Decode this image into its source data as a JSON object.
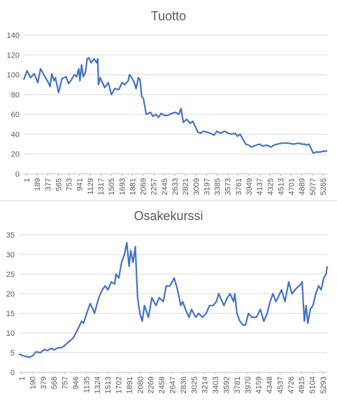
{
  "accent_color": "#4472C4",
  "chart_data": [
    {
      "type": "line",
      "title": "Tuotto",
      "xlabel": "",
      "ylabel": "",
      "ylim": [
        0,
        140
      ],
      "yticks": [
        0,
        20,
        40,
        60,
        80,
        100,
        120,
        140
      ],
      "grid": true,
      "legend": "none",
      "color": "#4472C4",
      "xtick_labels": [
        "1",
        "189",
        "377",
        "565",
        "753",
        "941",
        "1129",
        "1317",
        "1505",
        "1693",
        "1881",
        "2069",
        "2257",
        "2445",
        "2633",
        "2821",
        "3009",
        "3197",
        "3385",
        "3573",
        "3761",
        "3949",
        "4137",
        "4325",
        "4513",
        "4701",
        "4889",
        "5077",
        "5265"
      ],
      "x": [
        1,
        60,
        120,
        189,
        250,
        300,
        377,
        430,
        470,
        500,
        540,
        565,
        620,
        680,
        753,
        800,
        850,
        900,
        941,
        980,
        1000,
        1030,
        1060,
        1100,
        1129,
        1160,
        1200,
        1250,
        1300,
        1317,
        1330,
        1360,
        1400,
        1440,
        1505,
        1560,
        1620,
        1693,
        1750,
        1800,
        1860,
        1881,
        1920,
        1960,
        2000,
        2040,
        2069,
        2100,
        2130,
        2180,
        2257,
        2300,
        2350,
        2400,
        2445,
        2500,
        2560,
        2633,
        2700,
        2760,
        2800,
        2821,
        2840,
        2900,
        2960,
        3009,
        3050,
        3100,
        3150,
        3197,
        3260,
        3320,
        3385,
        3440,
        3500,
        3573,
        3640,
        3700,
        3761,
        3800,
        3850,
        3900,
        3949,
        4000,
        4050,
        4137,
        4200,
        4250,
        4325,
        4400,
        4450,
        4513,
        4600,
        4701,
        4800,
        4889,
        4950,
        5000,
        5030,
        5077,
        5150,
        5200,
        5265,
        5350,
        5400
      ],
      "y": [
        95,
        104,
        97,
        101,
        92,
        106,
        98,
        93,
        88,
        101,
        94,
        97,
        82,
        96,
        98,
        91,
        95,
        100,
        98,
        106,
        94,
        110,
        98,
        103,
        116,
        117,
        112,
        116,
        112,
        116,
        90,
        97,
        92,
        87,
        92,
        80,
        86,
        85,
        92,
        90,
        94,
        100,
        97,
        93,
        86,
        97,
        95,
        78,
        76,
        60,
        62,
        58,
        60,
        57,
        61,
        59,
        59,
        61,
        62,
        60,
        66,
        58,
        52,
        55,
        51,
        53,
        48,
        42,
        41,
        43,
        42,
        41,
        39,
        43,
        41,
        43,
        41,
        40,
        41,
        38,
        40,
        35,
        30,
        29,
        27,
        29,
        30,
        28,
        29,
        27,
        29,
        30,
        31,
        31,
        30,
        31,
        30,
        30,
        29,
        30,
        21,
        22,
        22,
        23,
        23
      ]
    },
    {
      "type": "line",
      "title": "Osakekurssi",
      "xlabel": "",
      "ylabel": "",
      "ylim": [
        0,
        35
      ],
      "yticks": [
        0,
        5,
        10,
        15,
        20,
        25,
        30,
        35
      ],
      "grid": true,
      "legend": "none",
      "color": "#4472C4",
      "xtick_labels": [
        "1",
        "190",
        "379",
        "568",
        "757",
        "946",
        "1135",
        "1324",
        "1513",
        "1702",
        "1891",
        "2080",
        "2269",
        "2458",
        "2647",
        "2836",
        "3025",
        "3214",
        "3403",
        "3592",
        "3781",
        "3970",
        "4159",
        "4348",
        "4537",
        "4726",
        "4915",
        "5104",
        "5293"
      ],
      "x": [
        1,
        100,
        190,
        250,
        300,
        379,
        450,
        500,
        568,
        620,
        680,
        757,
        800,
        860,
        946,
        1000,
        1050,
        1100,
        1135,
        1200,
        1250,
        1300,
        1324,
        1400,
        1460,
        1513,
        1560,
        1620,
        1680,
        1702,
        1750,
        1800,
        1850,
        1891,
        1930,
        1960,
        2000,
        2040,
        2080,
        2120,
        2160,
        2200,
        2269,
        2330,
        2400,
        2458,
        2530,
        2580,
        2647,
        2720,
        2780,
        2836,
        2870,
        2920,
        2980,
        3025,
        3100,
        3150,
        3214,
        3280,
        3340,
        3403,
        3460,
        3500,
        3560,
        3592,
        3650,
        3700,
        3760,
        3781,
        3820,
        3870,
        3930,
        3970,
        4020,
        4080,
        4159,
        4230,
        4290,
        4348,
        4400,
        4450,
        4500,
        4537,
        4600,
        4660,
        4726,
        4780,
        4840,
        4900,
        4915,
        4960,
        5000,
        5030,
        5060,
        5104,
        5150,
        5200,
        5250,
        5293,
        5340,
        5380,
        5400
      ],
      "y": [
        4.6,
        4.1,
        3.8,
        4.3,
        5.2,
        5.0,
        5.8,
        5.5,
        6.1,
        5.7,
        6.2,
        6.3,
        6.8,
        7.6,
        8.6,
        10,
        11.5,
        13,
        12.5,
        15.5,
        17.5,
        16,
        15,
        19,
        21,
        22,
        21,
        23,
        22.5,
        25,
        24,
        28,
        30,
        33,
        27,
        31,
        28,
        32,
        19,
        15,
        13,
        17,
        14,
        19,
        17,
        19,
        18,
        22,
        22,
        24,
        21,
        17,
        18,
        16,
        14,
        16,
        14,
        15,
        14,
        15,
        17,
        17,
        18,
        20,
        18,
        17,
        19,
        20,
        18,
        20,
        15,
        13,
        12,
        12,
        15,
        14,
        14,
        16,
        13,
        15,
        18,
        20,
        18,
        19,
        21,
        18,
        23,
        20,
        21,
        22,
        22,
        23,
        13,
        17,
        12.5,
        16,
        17,
        20,
        22,
        21,
        24,
        25,
        27
      ]
    }
  ]
}
